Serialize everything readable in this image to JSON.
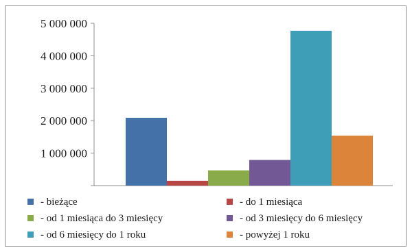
{
  "chart_data": {
    "type": "bar",
    "title": "",
    "xlabel": "",
    "ylabel": "",
    "ylim": [
      0,
      5000000
    ],
    "yticks": [
      1000000,
      2000000,
      3000000,
      4000000,
      5000000
    ],
    "ytick_labels": [
      "1 000 000",
      "2 000 000",
      "3 000 000",
      "4 000 000",
      "5 000 000"
    ],
    "grid": false,
    "legend_position": "bottom",
    "series": [
      {
        "name": "- bieżące",
        "value": 2090000,
        "color": "#4472a8"
      },
      {
        "name": "- do 1 miesiąca",
        "value": 150000,
        "color": "#b84644"
      },
      {
        "name": "- od 1 miesiąca do 3 miesięcy",
        "value": 470000,
        "color": "#8aab4a"
      },
      {
        "name": "- od 3 miesięcy do 6 miesięcy",
        "value": 790000,
        "color": "#725995"
      },
      {
        "name": "- od 6 miesięcy do 1 roku",
        "value": 4770000,
        "color": "#3e9db7"
      },
      {
        "name": "- powyżej 1 roku",
        "value": 1540000,
        "color": "#dd843b"
      }
    ]
  }
}
